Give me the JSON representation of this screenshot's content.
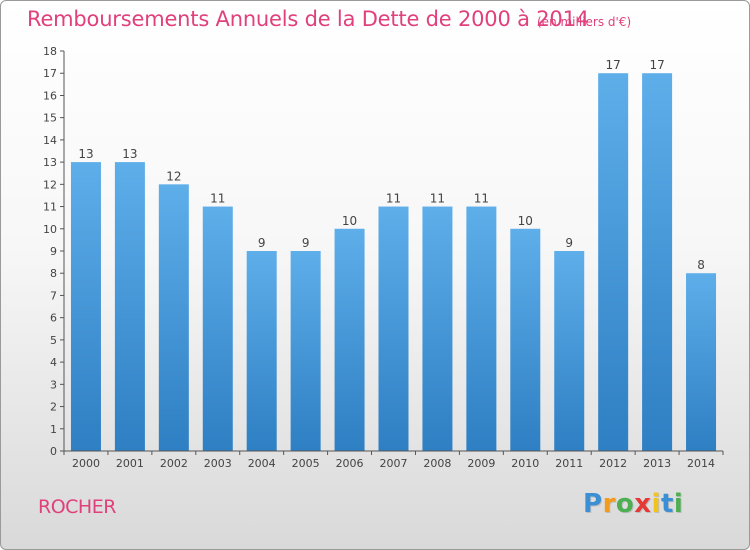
{
  "title": "Remboursements Annuels de la Dette de 2000 à 2014",
  "subtitle": "(en milliers d'€)",
  "place": "ROCHER",
  "logo": {
    "letters": [
      "P",
      "r",
      "o",
      "x",
      "i",
      "t",
      "i"
    ],
    "colors": [
      "#3b8fd4",
      "#f29b1d",
      "#4caf50",
      "#e53935",
      "#f2c21d",
      "#3b8fd4",
      "#4caf50"
    ]
  },
  "colors": {
    "accent": "#e0407c",
    "bar": "#3f95d6"
  },
  "chart_data": {
    "type": "bar",
    "title": "Remboursements Annuels de la Dette de 2000 à 2014",
    "subtitle": "(en milliers d'€)",
    "xlabel": "",
    "ylabel": "",
    "categories": [
      "2000",
      "2001",
      "2002",
      "2003",
      "2004",
      "2005",
      "2006",
      "2007",
      "2008",
      "2009",
      "2010",
      "2011",
      "2012",
      "2013",
      "2014"
    ],
    "values": [
      13,
      13,
      12,
      11,
      9,
      9,
      10,
      11,
      11,
      11,
      10,
      9,
      17,
      17,
      8
    ],
    "data_labels": [
      "13",
      "13",
      "12",
      "11",
      "9",
      "9",
      "10",
      "11",
      "11",
      "11",
      "10",
      "9",
      "17",
      "17",
      "8"
    ],
    "yticks": [
      "0",
      "1",
      "2",
      "3",
      "4",
      "5",
      "6",
      "7",
      "8",
      "9",
      "10",
      "11",
      "12",
      "13",
      "14",
      "15",
      "16",
      "17",
      "18"
    ],
    "ylim": [
      0,
      18
    ],
    "grid": false,
    "legend": "none"
  }
}
